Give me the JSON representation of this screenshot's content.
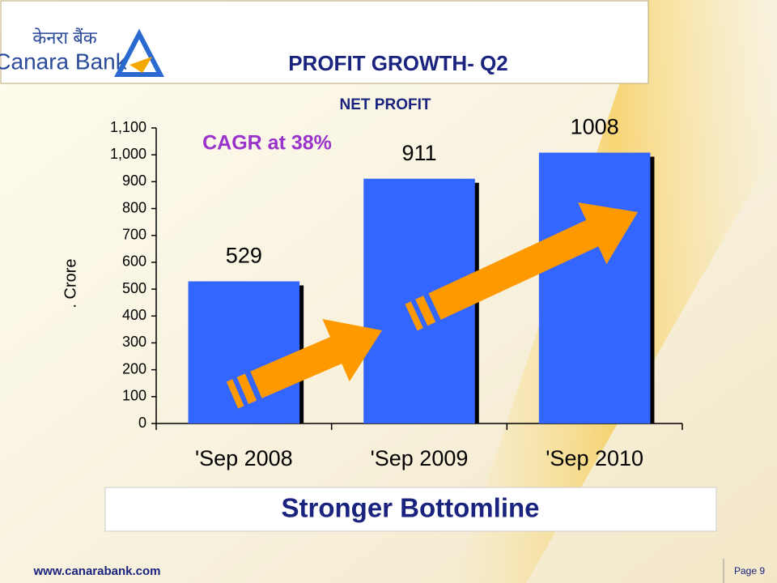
{
  "header": {
    "logo_hindi": "केनरा बैंक",
    "logo_name": "Canara Bank",
    "title": "PROFIT GROWTH- Q2"
  },
  "chart_data": {
    "type": "bar",
    "title": "NET PROFIT",
    "ylabel": ". Crore",
    "annotation": "CAGR at 38%",
    "categories": [
      "'Sep 2008",
      "'Sep 2009",
      "'Sep 2010"
    ],
    "values": [
      529,
      911,
      1008
    ],
    "color": "#3366ff",
    "ylim": [
      0,
      1100
    ],
    "yticks": [
      0,
      100,
      200,
      300,
      400,
      500,
      600,
      700,
      800,
      900,
      {
        "value": 1000,
        "label": "1,000"
      },
      {
        "value": 1100,
        "label": "1,100"
      }
    ]
  },
  "banner": "Stronger Bottomline",
  "footer": {
    "url": "www.canarabank.com",
    "page": "Page 9"
  }
}
